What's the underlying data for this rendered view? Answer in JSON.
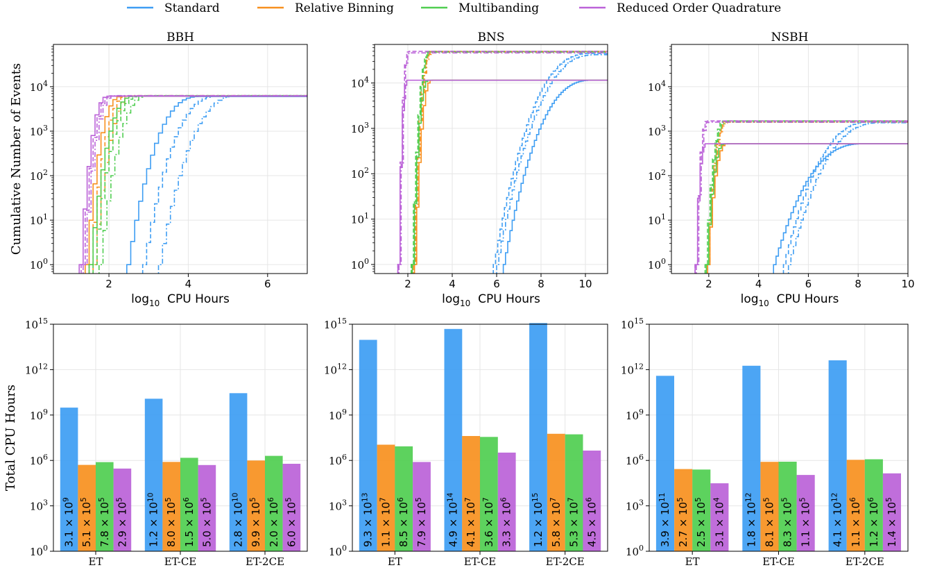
{
  "legend": [
    {
      "name": "Standard",
      "color": "#3d9df3"
    },
    {
      "name": "Relative Binning",
      "color": "#f7901e"
    },
    {
      "name": "Multibanding",
      "color": "#4fce50"
    },
    {
      "name": "Reduced Order Quadrature",
      "color": "#bb62d8"
    }
  ],
  "chart_data": [
    {
      "type": "line",
      "title": "BBH",
      "xlabel": "log10 CPU Hours",
      "ylabel": "Cumulative Number of Events",
      "xlim": [
        0.6,
        7.0
      ],
      "ylim_log10": [
        -0.2,
        4.95
      ],
      "xticks": [
        "2",
        "4",
        "6"
      ],
      "xtick_values": [
        2,
        4,
        6
      ],
      "yticks": [
        "0",
        "1",
        "2",
        "3",
        "4"
      ],
      "grid": true,
      "y_scale": "log",
      "x_step": 0.1,
      "series": [
        {
          "method": "Standard",
          "linestyle": "solid",
          "start": 2.45,
          "end": 7.0,
          "final": 6000,
          "rise": 1.8
        },
        {
          "method": "Standard",
          "linestyle": "dashed",
          "start": 2.85,
          "end": 7.0,
          "final": 6200,
          "rise": 1.9
        },
        {
          "method": "Standard",
          "linestyle": "dashdot",
          "start": 3.25,
          "end": 7.0,
          "final": 6300,
          "rise": 2.0
        },
        {
          "method": "Relative Binning",
          "linestyle": "solid",
          "start": 1.4,
          "end": 7.0,
          "final": 6100,
          "rise": 0.9
        },
        {
          "method": "Relative Binning",
          "linestyle": "dashed",
          "start": 1.5,
          "end": 7.0,
          "final": 6200,
          "rise": 0.95
        },
        {
          "method": "Relative Binning",
          "linestyle": "dashdot",
          "start": 1.6,
          "end": 7.0,
          "final": 6300,
          "rise": 1.0
        },
        {
          "method": "Multibanding",
          "linestyle": "solid",
          "start": 1.5,
          "end": 7.0,
          "final": 6100,
          "rise": 1.1
        },
        {
          "method": "Multibanding",
          "linestyle": "dashed",
          "start": 1.6,
          "end": 7.0,
          "final": 6200,
          "rise": 1.15
        },
        {
          "method": "Multibanding",
          "linestyle": "dashdot",
          "start": 1.75,
          "end": 7.0,
          "final": 6300,
          "rise": 1.2
        },
        {
          "method": "Reduced Order Quadrature",
          "linestyle": "solid",
          "start": 1.25,
          "end": 7.0,
          "final": 6100,
          "rise": 0.7
        },
        {
          "method": "Reduced Order Quadrature",
          "linestyle": "dashed",
          "start": 1.3,
          "end": 7.0,
          "final": 6200,
          "rise": 0.72
        },
        {
          "method": "Reduced Order Quadrature",
          "linestyle": "dashdot",
          "start": 1.35,
          "end": 7.0,
          "final": 6300,
          "rise": 0.75
        }
      ]
    },
    {
      "type": "line",
      "title": "BNS",
      "xlabel": "log10 CPU Hours",
      "ylabel": "",
      "xlim": [
        0.5,
        11.0
      ],
      "ylim_log10": [
        -0.2,
        4.85
      ],
      "xticks": [
        "2",
        "4",
        "6",
        "8",
        "10"
      ],
      "xtick_values": [
        2,
        4,
        6,
        8,
        10
      ],
      "yticks": [
        "0",
        "1",
        "2",
        "3",
        "4"
      ],
      "grid": true,
      "y_scale": "log",
      "x_step": 0.1,
      "series": [
        {
          "method": "Standard",
          "linestyle": "solid",
          "start": 6.3,
          "end": 11.0,
          "final": 11500,
          "rise": 4.0
        },
        {
          "method": "Standard",
          "linestyle": "dashed",
          "start": 5.85,
          "end": 11.0,
          "final": 45000,
          "rise": 4.4
        },
        {
          "method": "Standard",
          "linestyle": "dashdot",
          "start": 6.0,
          "end": 11.0,
          "final": 42000,
          "rise": 4.5
        },
        {
          "method": "Relative Binning",
          "linestyle": "solid",
          "start": 2.3,
          "end": 11.0,
          "final": 11500,
          "rise": 0.75
        },
        {
          "method": "Relative Binning",
          "linestyle": "dashed",
          "start": 2.2,
          "end": 11.0,
          "final": 50000,
          "rise": 0.85
        },
        {
          "method": "Relative Binning",
          "linestyle": "dashdot",
          "start": 2.25,
          "end": 11.0,
          "final": 48000,
          "rise": 0.85
        },
        {
          "method": "Multibanding",
          "linestyle": "solid",
          "start": 2.2,
          "end": 11.0,
          "final": 11500,
          "rise": 0.7
        },
        {
          "method": "Multibanding",
          "linestyle": "dashed",
          "start": 2.15,
          "end": 11.0,
          "final": 50000,
          "rise": 0.8
        },
        {
          "method": "Multibanding",
          "linestyle": "dashdot",
          "start": 2.2,
          "end": 11.0,
          "final": 48000,
          "rise": 0.8
        },
        {
          "method": "Reduced Order Quadrature",
          "linestyle": "solid",
          "start": 1.55,
          "end": 11.0,
          "final": 11500,
          "rise": 0.4
        },
        {
          "method": "Reduced Order Quadrature",
          "linestyle": "dashed",
          "start": 1.55,
          "end": 11.0,
          "final": 50000,
          "rise": 0.45
        },
        {
          "method": "Reduced Order Quadrature",
          "linestyle": "dashdot",
          "start": 1.6,
          "end": 11.0,
          "final": 46000,
          "rise": 0.45
        }
      ]
    },
    {
      "type": "line",
      "title": "NSBH",
      "xlabel": "log10 CPU Hours",
      "ylabel": "",
      "xlim": [
        0.5,
        10.0
      ],
      "ylim_log10": [
        -0.2,
        4.95
      ],
      "xticks": [
        "2",
        "4",
        "6",
        "8",
        "10"
      ],
      "xtick_values": [
        2,
        4,
        6,
        8,
        10
      ],
      "yticks": [
        "0",
        "1",
        "2",
        "3",
        "4"
      ],
      "grid": true,
      "y_scale": "log",
      "x_step": 0.1,
      "series": [
        {
          "method": "Standard",
          "linestyle": "solid",
          "start": 4.6,
          "end": 10.0,
          "final": 520,
          "rise": 3.6
        },
        {
          "method": "Standard",
          "linestyle": "dashed",
          "start": 5.0,
          "end": 10.0,
          "final": 1650,
          "rise": 3.6
        },
        {
          "method": "Standard",
          "linestyle": "dashdot",
          "start": 5.2,
          "end": 10.0,
          "final": 1550,
          "rise": 3.7
        },
        {
          "method": "Relative Binning",
          "linestyle": "solid",
          "start": 1.95,
          "end": 10.0,
          "final": 520,
          "rise": 0.75
        },
        {
          "method": "Relative Binning",
          "linestyle": "dashed",
          "start": 1.9,
          "end": 10.0,
          "final": 1700,
          "rise": 0.8
        },
        {
          "method": "Relative Binning",
          "linestyle": "dashdot",
          "start": 1.95,
          "end": 10.0,
          "final": 1600,
          "rise": 0.8
        },
        {
          "method": "Multibanding",
          "linestyle": "solid",
          "start": 1.9,
          "end": 10.0,
          "final": 520,
          "rise": 0.7
        },
        {
          "method": "Multibanding",
          "linestyle": "dashed",
          "start": 1.85,
          "end": 10.0,
          "final": 1700,
          "rise": 0.75
        },
        {
          "method": "Multibanding",
          "linestyle": "dashdot",
          "start": 1.9,
          "end": 10.0,
          "final": 1600,
          "rise": 0.75
        },
        {
          "method": "Reduced Order Quadrature",
          "linestyle": "solid",
          "start": 1.45,
          "end": 10.0,
          "final": 520,
          "rise": 0.4
        },
        {
          "method": "Reduced Order Quadrature",
          "linestyle": "dashed",
          "start": 1.45,
          "end": 10.0,
          "final": 1700,
          "rise": 0.45
        },
        {
          "method": "Reduced Order Quadrature",
          "linestyle": "dashdot",
          "start": 1.5,
          "end": 10.0,
          "final": 1600,
          "rise": 0.45
        }
      ]
    },
    {
      "type": "bar",
      "title": "",
      "ylabel": "Total CPU Hours",
      "y_scale": "log",
      "ylim_log10": [
        0,
        15
      ],
      "yticks": [
        "0",
        "3",
        "6",
        "9",
        "12",
        "15"
      ],
      "categories": [
        "ET",
        "ET-CE",
        "ET-2CE"
      ],
      "grid": true,
      "series": [
        {
          "name": "Standard",
          "values": [
            3100000000.0,
            12000000000.0,
            28000000000.0
          ],
          "labels": [
            [
              "3.1",
              "9"
            ],
            [
              "1.2",
              "10"
            ],
            [
              "2.8",
              "10"
            ]
          ]
        },
        {
          "name": "Relative Binning",
          "values": [
            510000.0,
            800000.0,
            990000.0
          ],
          "labels": [
            [
              "5.1",
              "5"
            ],
            [
              "8.0",
              "5"
            ],
            [
              "9.9",
              "5"
            ]
          ]
        },
        {
          "name": "Multibanding",
          "values": [
            780000.0,
            1500000.0,
            2000000.0
          ],
          "labels": [
            [
              "7.8",
              "5"
            ],
            [
              "1.5",
              "6"
            ],
            [
              "2.0",
              "6"
            ]
          ]
        },
        {
          "name": "Reduced Order Quadrature",
          "values": [
            290000.0,
            500000.0,
            600000.0
          ],
          "labels": [
            [
              "2.9",
              "5"
            ],
            [
              "5.0",
              "5"
            ],
            [
              "6.0",
              "5"
            ]
          ]
        }
      ]
    },
    {
      "type": "bar",
      "title": "",
      "ylabel": "",
      "y_scale": "log",
      "ylim_log10": [
        0,
        15
      ],
      "yticks": [
        "0",
        "3",
        "6",
        "9",
        "12",
        "15"
      ],
      "categories": [
        "ET",
        "ET-CE",
        "ET-2CE"
      ],
      "grid": true,
      "series": [
        {
          "name": "Standard",
          "values": [
            93000000000000.0,
            490000000000000.0,
            1200000000000000.0
          ],
          "labels": [
            [
              "9.3",
              "13"
            ],
            [
              "4.9",
              "14"
            ],
            [
              "1.2",
              "15"
            ]
          ]
        },
        {
          "name": "Relative Binning",
          "values": [
            11000000.0,
            41000000.0,
            58000000.0
          ],
          "labels": [
            [
              "1.1",
              "7"
            ],
            [
              "4.1",
              "7"
            ],
            [
              "5.8",
              "7"
            ]
          ]
        },
        {
          "name": "Multibanding",
          "values": [
            8500000.0,
            36000000.0,
            53000000.0
          ],
          "labels": [
            [
              "8.5",
              "6"
            ],
            [
              "3.6",
              "7"
            ],
            [
              "5.3",
              "7"
            ]
          ]
        },
        {
          "name": "Reduced Order Quadrature",
          "values": [
            790000.0,
            3300000.0,
            4500000.0
          ],
          "labels": [
            [
              "7.9",
              "5"
            ],
            [
              "3.3",
              "6"
            ],
            [
              "4.5",
              "6"
            ]
          ]
        }
      ]
    },
    {
      "type": "bar",
      "title": "",
      "ylabel": "",
      "y_scale": "log",
      "ylim_log10": [
        0,
        15
      ],
      "yticks": [
        "0",
        "3",
        "6",
        "9",
        "12",
        "15"
      ],
      "categories": [
        "ET",
        "ET-CE",
        "ET-2CE"
      ],
      "grid": true,
      "series": [
        {
          "name": "Standard",
          "values": [
            390000000000.0,
            1800000000000.0,
            4100000000000.0
          ],
          "labels": [
            [
              "3.9",
              "11"
            ],
            [
              "1.8",
              "12"
            ],
            [
              "4.1",
              "12"
            ]
          ]
        },
        {
          "name": "Relative Binning",
          "values": [
            270000.0,
            810000.0,
            1100000.0
          ],
          "labels": [
            [
              "2.7",
              "5"
            ],
            [
              "8.1",
              "5"
            ],
            [
              "1.1",
              "6"
            ]
          ]
        },
        {
          "name": "Multibanding",
          "values": [
            250000.0,
            830000.0,
            1200000.0
          ],
          "labels": [
            [
              "2.5",
              "5"
            ],
            [
              "8.3",
              "5"
            ],
            [
              "1.2",
              "6"
            ]
          ]
        },
        {
          "name": "Reduced Order Quadrature",
          "values": [
            31000.0,
            110000.0,
            140000.0
          ],
          "labels": [
            [
              "3.1",
              "4"
            ],
            [
              "1.1",
              "5"
            ],
            [
              "1.4",
              "5"
            ]
          ]
        }
      ]
    }
  ]
}
